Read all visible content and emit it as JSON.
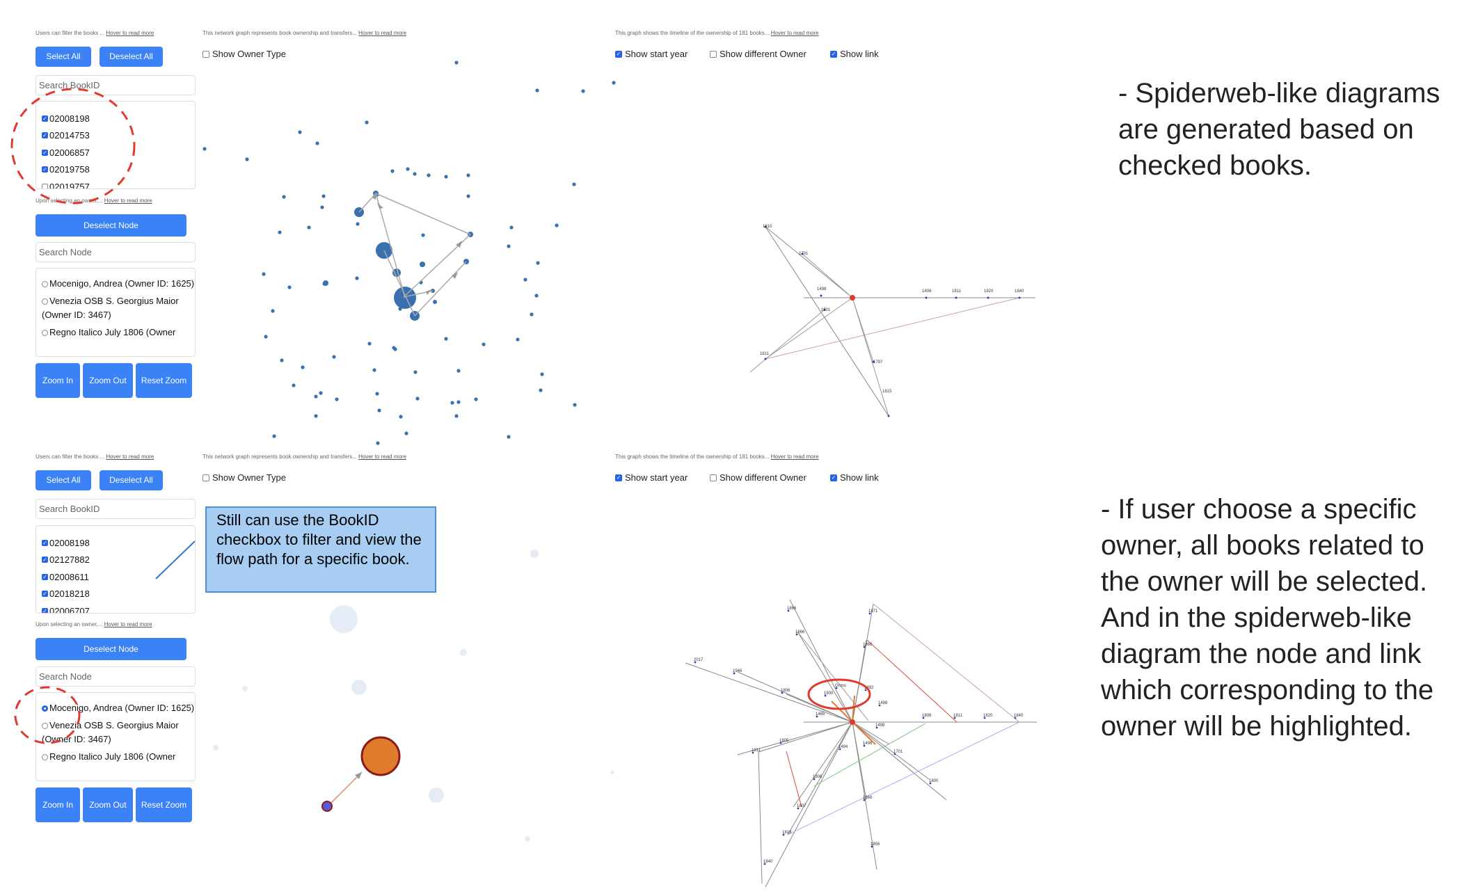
{
  "panels": [
    {
      "filter_note": "Users can filter the books ...",
      "hover_link": "Hover to read more",
      "select_all": "Select All",
      "deselect_all": "Deselect All",
      "search_book_placeholder": "Search BookID",
      "books": [
        {
          "id": "02008198",
          "checked": true
        },
        {
          "id": "02014753",
          "checked": true
        },
        {
          "id": "02006857",
          "checked": true
        },
        {
          "id": "02019758",
          "checked": true
        },
        {
          "id": "02019757",
          "checked": false
        }
      ],
      "owner_note": "Upon selecting an owner,...",
      "deselect_node": "Deselect Node",
      "search_node_placeholder": "Search Node",
      "owners": [
        {
          "label": "Mocenigo, Andrea (Owner ID: 1625)",
          "selected": false
        },
        {
          "label": "Venezia OSB S. Georgius Maior (Owner ID: 3467)",
          "selected": false
        },
        {
          "label": "Regno Italico July 1806 (Owner",
          "selected": false
        }
      ],
      "zoom_in": "Zoom In",
      "zoom_out": "Zoom Out",
      "reset_zoom": "Reset Zoom",
      "network_note": "This network graph represents book ownership and transfers...",
      "show_owner_type": "Show Owner Type",
      "timeline_note": "This graph shows the timeline of the ownership of 181 books...",
      "show_start_year": "Show start year",
      "show_different_owner": "Show different Owner",
      "show_link": "Show link"
    },
    {
      "filter_note": "Users can filter the books ...",
      "hover_link": "Hover to read more",
      "select_all": "Select All",
      "deselect_all": "Deselect All",
      "search_book_placeholder": "Search BookID",
      "books": [
        {
          "id": "02008198",
          "checked": true
        },
        {
          "id": "02127882",
          "checked": true
        },
        {
          "id": "02008611",
          "checked": true
        },
        {
          "id": "02018218",
          "checked": true
        },
        {
          "id": "02006707",
          "checked": true
        }
      ],
      "owner_note": "Upon selecting an owner,...",
      "deselect_node": "Deselect Node",
      "search_node_placeholder": "Search Node",
      "owners": [
        {
          "label": "Mocenigo, Andrea (Owner ID: 1625)",
          "selected": true
        },
        {
          "label": "Venezia OSB S. Georgius Maior (Owner ID: 3467)",
          "selected": false
        },
        {
          "label": "Regno Italico July 1806 (Owner",
          "selected": false
        }
      ],
      "zoom_in": "Zoom In",
      "zoom_out": "Zoom Out",
      "reset_zoom": "Reset Zoom",
      "network_note": "This network graph represents book ownership and transfers...",
      "show_owner_type": "Show Owner Type",
      "timeline_note": "This graph shows the timeline of the ownership of 181 books...",
      "show_start_year": "Show start year",
      "show_different_owner": "Show different Owner",
      "show_link": "Show link"
    }
  ],
  "toggles_state": {
    "show_owner_type": false,
    "show_start_year": true,
    "show_different_owner": false,
    "show_link": true
  },
  "tooltip_text": "Still can use the BookID checkbox to filter and view the flow path for a specific book.",
  "captions": {
    "top": "- Spiderweb-like diagrams are generated based on checked books.",
    "bottom": "- If user choose a specific owner, all books related to the owner will be selected. And in the spiderweb-like diagram the node and link which corresponding to the owner will be highlighted."
  },
  "timeline_top_years": [
    "1810",
    "1701",
    "1498",
    "1501",
    "1811",
    "1806",
    "1811",
    "1820",
    "1840",
    "1797",
    "1815"
  ],
  "timeline_bottom_years": [
    "1866",
    "1871",
    "1866",
    "1866",
    "2017",
    "1946",
    "1806",
    "1500",
    "Gross",
    "1492",
    "1498",
    "1806",
    "1811",
    "1820",
    "1840",
    "1465",
    "1498",
    "1494",
    "1811",
    "1805",
    "1496",
    "1701",
    "1806",
    "1800",
    "1807",
    "1866",
    "1818",
    "1856",
    "1840"
  ],
  "colors": {
    "button": "#3b82f6",
    "node": "#3a6fb0",
    "highlight_node": "#e07a2c",
    "annotation": "#e03a2e"
  }
}
